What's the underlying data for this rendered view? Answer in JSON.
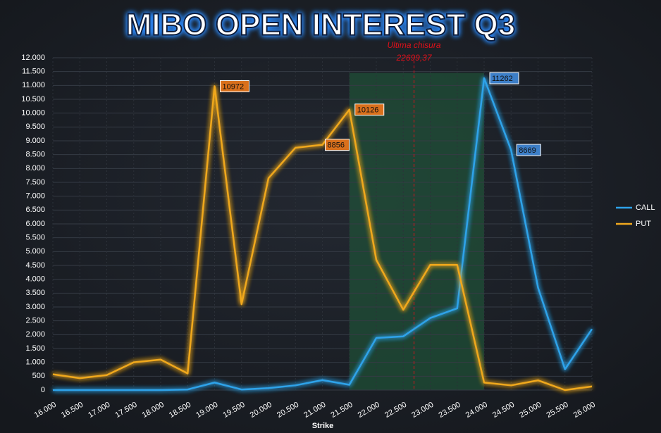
{
  "chart_data": {
    "type": "line",
    "title": "MIBO OPEN INTEREST Q3",
    "x_label": "Strike",
    "x": [
      16000,
      16500,
      17000,
      17500,
      18000,
      18500,
      19000,
      19500,
      20000,
      20500,
      21000,
      21500,
      22000,
      22500,
      23000,
      23500,
      24000,
      24500,
      25000,
      25500,
      26000
    ],
    "xlim": [
      16000,
      26000
    ],
    "xticks": [
      {
        "value": 16000,
        "label": "16.000"
      },
      {
        "value": 16500,
        "label": "16.500"
      },
      {
        "value": 17000,
        "label": "17.000"
      },
      {
        "value": 17500,
        "label": "17.500"
      },
      {
        "value": 18000,
        "label": "18.000"
      },
      {
        "value": 18500,
        "label": "18.500"
      },
      {
        "value": 19000,
        "label": "19.000"
      },
      {
        "value": 19500,
        "label": "19.500"
      },
      {
        "value": 20000,
        "label": "20.000"
      },
      {
        "value": 20500,
        "label": "20.500"
      },
      {
        "value": 21000,
        "label": "21.000"
      },
      {
        "value": 21500,
        "label": "21.500"
      },
      {
        "value": 22000,
        "label": "22.000"
      },
      {
        "value": 22500,
        "label": "22.500"
      },
      {
        "value": 23000,
        "label": "23.000"
      },
      {
        "value": 23500,
        "label": "23.500"
      },
      {
        "value": 24000,
        "label": "24.000"
      },
      {
        "value": 24500,
        "label": "24.500"
      },
      {
        "value": 25000,
        "label": "25.000"
      },
      {
        "value": 25500,
        "label": "25.500"
      },
      {
        "value": 26000,
        "label": "26.000"
      }
    ],
    "ylim": [
      0,
      12000
    ],
    "yticks": [
      0,
      {
        "value": 500,
        "label": "500"
      },
      {
        "value": 1000,
        "label": "1.000"
      },
      {
        "value": 1500,
        "label": "1.500"
      },
      {
        "value": 2000,
        "label": "2.000"
      },
      {
        "value": 2500,
        "label": "2.500"
      },
      {
        "value": 3000,
        "label": "3.000"
      },
      {
        "value": 3500,
        "label": "3.500"
      },
      {
        "value": 4000,
        "label": "4.000"
      },
      {
        "value": 4500,
        "label": "4.500"
      },
      {
        "value": 5000,
        "label": "5.000"
      },
      {
        "value": 5500,
        "label": "5.500"
      },
      {
        "value": 6000,
        "label": "6.000"
      },
      {
        "value": 6500,
        "label": "6.500"
      },
      {
        "value": 7000,
        "label": "7.000"
      },
      {
        "value": 7500,
        "label": "7.500"
      },
      {
        "value": 8000,
        "label": "8.000"
      },
      {
        "value": 8500,
        "label": "8.500"
      },
      {
        "value": 9000,
        "label": "9.000"
      },
      {
        "value": 9500,
        "label": "9.500"
      },
      {
        "value": 10000,
        "label": "10.000"
      },
      {
        "value": 10500,
        "label": "10.500"
      },
      {
        "value": 11000,
        "label": "11.000"
      },
      {
        "value": 11500,
        "label": "11.500"
      },
      {
        "value": 12000,
        "label": "12.000"
      }
    ],
    "grid": true,
    "highlight_range": [
      21500,
      24000
    ],
    "annotation": {
      "text": "Ultima chisura",
      "value": 22699.37,
      "label": "22699,37",
      "color": "#e0101a"
    },
    "legend": "right",
    "series": [
      {
        "name": "CALL",
        "color": "#2ea3ea",
        "label_color": "#3d7fc8",
        "values": [
          0,
          0,
          0,
          0,
          0,
          20,
          270,
          20,
          70,
          170,
          360,
          190,
          1880,
          1940,
          2600,
          2950,
          11262,
          8669,
          3700,
          750,
          2200
        ],
        "value_labels": [
          null,
          null,
          null,
          null,
          null,
          null,
          null,
          null,
          null,
          null,
          null,
          null,
          null,
          null,
          null,
          null,
          "11262",
          "8669",
          null,
          null,
          null
        ]
      },
      {
        "name": "PUT",
        "color": "#f0a81e",
        "label_color": "#d9701c",
        "values": [
          570,
          430,
          540,
          1000,
          1100,
          600,
          10972,
          3100,
          7650,
          8750,
          8856,
          10126,
          4700,
          2900,
          4520,
          4520,
          270,
          170,
          350,
          0,
          130
        ],
        "value_labels": [
          null,
          null,
          null,
          null,
          null,
          null,
          "10972",
          null,
          null,
          null,
          "8856",
          "10126",
          null,
          null,
          null,
          null,
          null,
          null,
          null,
          null,
          null
        ]
      }
    ]
  }
}
